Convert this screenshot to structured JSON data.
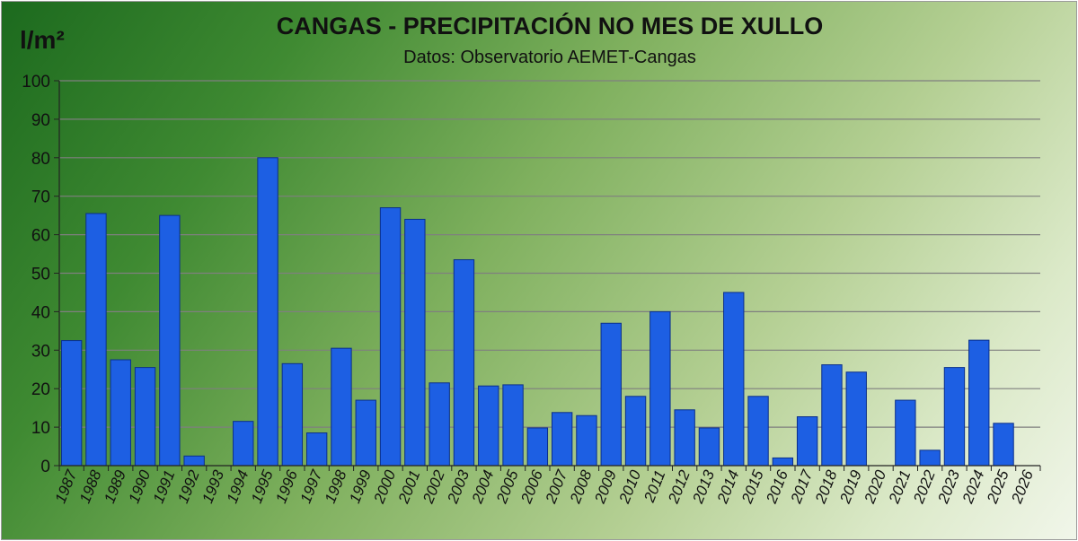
{
  "chart_data": {
    "type": "bar",
    "title": "CANGAS - PRECIPITACIÓN NO MES DE XULLO",
    "subtitle": "Datos: Observatorio AEMET-Cangas",
    "ylabel": "l/m²",
    "xlabel": "",
    "ylim": [
      0,
      100
    ],
    "yticks": [
      0,
      10,
      20,
      30,
      40,
      50,
      60,
      70,
      80,
      90,
      100
    ],
    "grid": true,
    "legend": "none",
    "categories": [
      "1987",
      "1988",
      "1989",
      "1990",
      "1991",
      "1992",
      "1993",
      "1994",
      "1995",
      "1996",
      "1997",
      "1998",
      "1999",
      "2000",
      "2001",
      "2002",
      "2003",
      "2004",
      "2005",
      "2006",
      "2007",
      "2008",
      "2009",
      "2010",
      "2011",
      "2012",
      "2013",
      "2014",
      "2015",
      "2016",
      "2017",
      "2018",
      "2019",
      "2020",
      "2021",
      "2022",
      "2023",
      "2024",
      "2025",
      "2026"
    ],
    "values": [
      32.5,
      65.5,
      27.5,
      25.5,
      65,
      2.5,
      0,
      11.5,
      80,
      26.5,
      8.5,
      30.5,
      17,
      67,
      64,
      21.5,
      53.5,
      20.7,
      21,
      9.8,
      13.8,
      13,
      37,
      18,
      40,
      14.5,
      9.8,
      45,
      18,
      2,
      12.7,
      26.2,
      24.3,
      0,
      17,
      4,
      25.5,
      32.6,
      11,
      null
    ],
    "colors": {
      "bar": "#1d5fe3",
      "bar_edge": "#0b2f8a",
      "grid": "#7f7f7f",
      "axis": "#222222"
    }
  }
}
